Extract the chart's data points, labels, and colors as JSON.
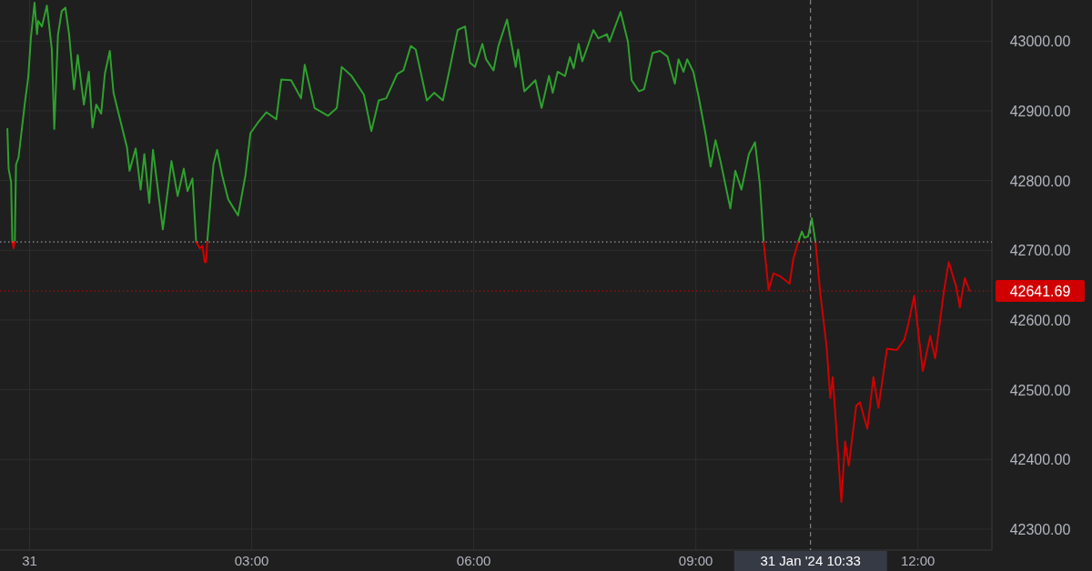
{
  "chart_data": {
    "type": "line",
    "xlim": [
      "2024-01-30T23:36",
      "2024-01-31T13:00"
    ],
    "ylim": [
      42270,
      43059
    ],
    "xticks": [
      {
        "value": "2024-01-31T00:00",
        "label": "31"
      },
      {
        "value": "2024-01-31T03:00",
        "label": "03:00"
      },
      {
        "value": "2024-01-31T06:00",
        "label": "06:00"
      },
      {
        "value": "2024-01-31T09:00",
        "label": "09:00"
      },
      {
        "value": "2024-01-31T12:00",
        "label": "12:00"
      }
    ],
    "yticks": [
      {
        "value": 42300,
        "label": "42300.00"
      },
      {
        "value": 42400,
        "label": "42400.00"
      },
      {
        "value": 42500,
        "label": "42500.00"
      },
      {
        "value": 42600,
        "label": "42600.00"
      },
      {
        "value": 42700,
        "label": "42700.00"
      },
      {
        "value": 42800,
        "label": "42800.00"
      },
      {
        "value": 42900,
        "label": "42900.00"
      },
      {
        "value": 43000,
        "label": "43000.00"
      }
    ],
    "grid": true,
    "series": [
      {
        "color": "#2ea12e",
        "x": [
          "2024-01-30T23:42",
          "2024-01-30T23:43",
          "2024-01-30T23:45",
          "2024-01-30T23:46",
          null,
          "2024-01-30T23:48",
          "2024-01-30T23:49",
          "2024-01-30T23:51",
          "2024-01-30T23:56",
          "2024-01-30T23:59",
          "2024-01-31T00:01",
          "2024-01-31T00:04",
          "2024-01-31T00:06",
          "2024-01-31T00:07",
          "2024-01-31T00:10",
          "2024-01-31T00:14",
          "2024-01-31T00:18",
          "2024-01-31T00:20",
          "2024-01-31T00:23",
          "2024-01-31T00:26",
          "2024-01-31T00:29",
          "2024-01-31T00:32",
          "2024-01-31T00:36",
          "2024-01-31T00:39",
          "2024-01-31T00:44",
          "2024-01-31T00:48",
          "2024-01-31T00:51",
          "2024-01-31T00:54",
          "2024-01-31T00:58",
          "2024-01-31T01:01",
          "2024-01-31T01:05",
          "2024-01-31T01:08",
          "2024-01-31T01:14",
          "2024-01-31T01:19",
          "2024-01-31T01:21",
          "2024-01-31T01:26",
          "2024-01-31T01:30",
          "2024-01-31T01:33",
          "2024-01-31T01:37",
          "2024-01-31T01:40",
          "2024-01-31T01:44",
          "2024-01-31T01:48",
          "2024-01-31T01:55",
          "2024-01-31T02:00",
          "2024-01-31T02:05",
          "2024-01-31T02:08",
          "2024-01-31T02:12",
          "2024-01-31T02:15",
          null,
          "2024-01-31T02:24",
          "2024-01-31T02:29",
          "2024-01-31T02:32",
          "2024-01-31T02:36",
          "2024-01-31T02:41",
          "2024-01-31T02:49",
          "2024-01-31T02:55",
          "2024-01-31T02:59",
          "2024-01-31T03:05",
          "2024-01-31T03:12",
          "2024-01-31T03:20",
          "2024-01-31T03:24",
          "2024-01-31T03:32",
          "2024-01-31T03:40",
          "2024-01-31T03:43",
          "2024-01-31T03:51",
          "2024-01-31T04:02",
          "2024-01-31T04:09",
          "2024-01-31T04:13",
          "2024-01-31T04:21",
          "2024-01-31T04:31",
          "2024-01-31T04:37",
          "2024-01-31T04:43",
          "2024-01-31T04:49",
          "2024-01-31T04:58",
          "2024-01-31T05:03",
          "2024-01-31T05:09",
          "2024-01-31T05:13",
          "2024-01-31T05:22",
          "2024-01-31T05:28",
          "2024-01-31T05:35",
          "2024-01-31T05:40",
          "2024-01-31T05:47",
          "2024-01-31T05:53",
          "2024-01-31T05:57",
          "2024-01-31T06:01",
          "2024-01-31T06:07",
          "2024-01-31T06:10",
          "2024-01-31T06:16",
          "2024-01-31T06:20",
          "2024-01-31T06:27",
          "2024-01-31T06:34",
          "2024-01-31T06:36",
          "2024-01-31T06:41",
          "2024-01-31T06:50",
          "2024-01-31T06:55",
          "2024-01-31T07:01",
          "2024-01-31T07:04",
          "2024-01-31T07:08",
          "2024-01-31T07:14",
          "2024-01-31T07:18",
          "2024-01-31T07:21",
          "2024-01-31T07:25",
          "2024-01-31T07:28",
          "2024-01-31T07:37",
          "2024-01-31T07:41",
          "2024-01-31T07:48",
          "2024-01-31T07:50",
          "2024-01-31T07:59",
          "2024-01-31T08:05",
          "2024-01-31T08:08",
          "2024-01-31T08:14",
          "2024-01-31T08:18",
          "2024-01-31T08:25",
          "2024-01-31T08:31",
          "2024-01-31T08:37",
          "2024-01-31T08:43",
          "2024-01-31T08:46",
          "2024-01-31T08:50",
          "2024-01-31T08:53",
          "2024-01-31T08:58",
          "2024-01-31T09:02",
          "2024-01-31T09:08",
          "2024-01-31T09:12",
          "2024-01-31T09:16",
          "2024-01-31T09:20",
          "2024-01-31T09:28",
          "2024-01-31T09:32",
          "2024-01-31T09:37",
          "2024-01-31T09:43",
          "2024-01-31T09:48",
          "2024-01-31T09:52",
          "2024-01-31T09:55",
          null,
          "2024-01-31T10:23",
          "2024-01-31T10:26",
          "2024-01-31T10:28",
          "2024-01-31T10:31",
          "2024-01-31T10:34",
          "2024-01-31T10:37"
        ],
        "values": [
          42874,
          42817,
          42798,
          42712,
          null,
          42712,
          42823,
          42833,
          42909,
          42950,
          43004,
          43055,
          43010,
          43029,
          43021,
          43051,
          42988,
          42874,
          43009,
          43043,
          43048,
          43010,
          42931,
          42980,
          42909,
          42956,
          42876,
          42909,
          42896,
          42953,
          42986,
          42926,
          42883,
          42847,
          42814,
          42846,
          42787,
          42838,
          42768,
          42844,
          42787,
          42730,
          42828,
          42778,
          42817,
          42785,
          42803,
          42712,
          null,
          42712,
          42823,
          42844,
          42808,
          42773,
          42750,
          42808,
          42868,
          42883,
          42898,
          42888,
          42945,
          42944,
          42918,
          42966,
          42904,
          42893,
          42904,
          42963,
          42950,
          42923,
          42871,
          42915,
          42918,
          42953,
          42958,
          42993,
          42988,
          42915,
          42926,
          42915,
          42956,
          43016,
          43021,
          42969,
          42963,
          42996,
          42974,
          42958,
          42993,
          43031,
          42963,
          42988,
          42928,
          42944,
          42904,
          42950,
          42926,
          42956,
          42950,
          42977,
          42961,
          42996,
          42971,
          43016,
          43004,
          43010,
          42999,
          43042,
          42999,
          42944,
          42928,
          42931,
          42983,
          42986,
          42978,
          42939,
          42974,
          42956,
          42974,
          42956,
          42923,
          42866,
          42820,
          42858,
          42828,
          42760,
          42814,
          42787,
          42838,
          42855,
          42793,
          42712,
          null,
          42712,
          42727,
          42718,
          42720,
          42746,
          42712
        ]
      },
      {
        "color": "#d10000",
        "x": [
          "2024-01-30T23:46",
          "2024-01-30T23:47",
          "2024-01-30T23:48",
          null,
          "2024-01-31T02:15",
          "2024-01-31T02:18",
          "2024-01-31T02:20",
          "2024-01-31T02:22",
          "2024-01-31T02:23",
          "2024-01-31T02:24",
          null,
          "2024-01-31T09:55",
          "2024-01-31T09:59",
          "2024-01-31T10:03",
          "2024-01-31T10:09",
          "2024-01-31T10:16",
          "2024-01-31T10:19",
          "2024-01-31T10:23",
          null,
          "2024-01-31T10:37",
          "2024-01-31T10:41",
          "2024-01-31T10:46",
          "2024-01-31T10:49",
          "2024-01-31T10:51",
          "2024-01-31T10:58",
          "2024-01-31T11:01",
          "2024-01-31T11:04",
          "2024-01-31T11:10",
          "2024-01-31T11:13",
          "2024-01-31T11:19",
          "2024-01-31T11:24",
          "2024-01-31T11:28",
          "2024-01-31T11:35",
          "2024-01-31T11:43",
          "2024-01-31T11:49",
          "2024-01-31T11:52",
          "2024-01-31T11:57",
          "2024-01-31T12:01",
          "2024-01-31T12:04",
          "2024-01-31T12:10",
          "2024-01-31T12:14",
          "2024-01-31T12:21",
          "2024-01-31T12:25",
          "2024-01-31T12:31",
          "2024-01-31T12:34",
          "2024-01-31T12:38",
          "2024-01-31T12:42"
        ],
        "values": [
          42712,
          42703,
          42712,
          null,
          42712,
          42703,
          42706,
          42683,
          42683,
          42712,
          null,
          42712,
          42643,
          42667,
          42662,
          42652,
          42687,
          42712,
          null,
          42712,
          42637,
          42562,
          42488,
          42518,
          42339,
          42426,
          42391,
          42477,
          42482,
          42444,
          42518,
          42474,
          42559,
          42557,
          42572,
          42592,
          42635,
          42572,
          42527,
          42577,
          42545,
          42640,
          42683,
          42648,
          42618,
          42660,
          42641.69
        ]
      }
    ],
    "ref_lines": [
      {
        "axis": "y",
        "value": 42712,
        "label": null,
        "color": "#b2b5be",
        "line_style": "dotted"
      },
      {
        "axis": "y",
        "value": 42641.69,
        "label": "42641.69",
        "color": "#d10000",
        "line_style": "dotted"
      },
      {
        "axis": "x",
        "value": "2024-01-31T10:33",
        "label": "31 Jan '24  10:33",
        "color": "#9598a1",
        "line_style": "dashed"
      }
    ]
  }
}
